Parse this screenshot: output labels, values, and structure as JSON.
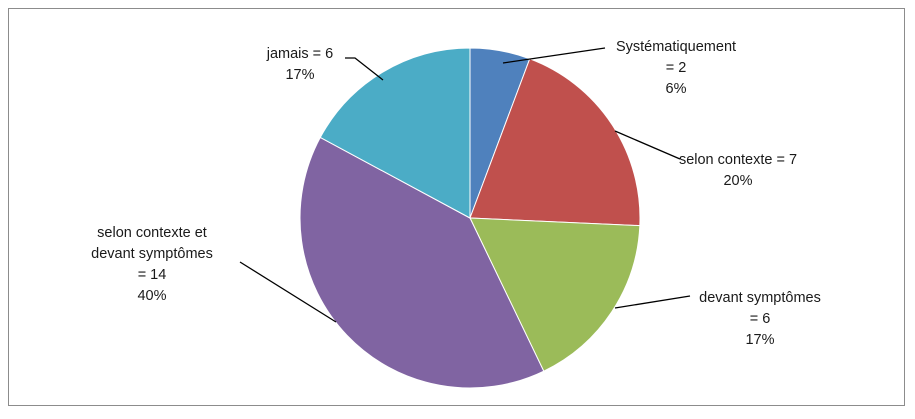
{
  "chart_data": {
    "type": "pie",
    "title": "",
    "slices": [
      {
        "name": "Systématiquement",
        "value": 2,
        "percent": "6%",
        "color": "#4F81BD",
        "label_lines": [
          "Systématiquement",
          "= 2",
          "6%"
        ]
      },
      {
        "name": "selon contexte",
        "value": 7,
        "percent": "20%",
        "color": "#C0504D",
        "label_lines": [
          "selon contexte = 7",
          "20%"
        ]
      },
      {
        "name": "devant symptômes",
        "value": 6,
        "percent": "17%",
        "color": "#9BBB59",
        "label_lines": [
          "devant symptômes",
          "= 6",
          "17%"
        ]
      },
      {
        "name": "selon contexte et devant symptômes",
        "value": 14,
        "percent": "40%",
        "color": "#8064A2",
        "label_lines": [
          "selon contexte et",
          "devant symptômes",
          "= 14",
          "40%"
        ]
      },
      {
        "name": "jamais",
        "value": 6,
        "percent": "17%",
        "color": "#4BACC6",
        "label_lines": [
          "jamais = 6",
          "17%"
        ]
      }
    ],
    "legend": "none"
  }
}
